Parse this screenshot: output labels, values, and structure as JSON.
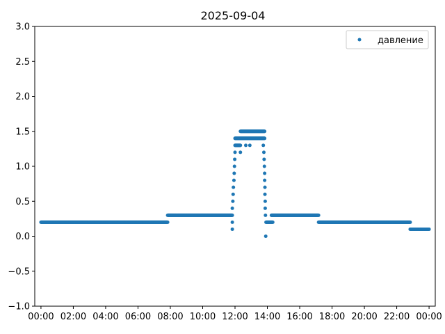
{
  "chart_data": {
    "type": "scatter",
    "title": "2025-09-04",
    "xlabel": "",
    "ylabel": "",
    "xlim": [
      "2025-09-03 23:37",
      "2025-09-05 00:23"
    ],
    "ylim": [
      -1.0,
      3.0
    ],
    "x_ticks": [
      "00:00",
      "02:00",
      "04:00",
      "06:00",
      "08:00",
      "10:00",
      "12:00",
      "14:00",
      "16:00",
      "18:00",
      "20:00",
      "22:00",
      "00:00"
    ],
    "y_ticks": [
      "−1.0",
      "−0.5",
      "0.0",
      "0.5",
      "1.0",
      "1.5",
      "2.0",
      "2.5",
      "3.0"
    ],
    "legend": {
      "position": "upper-right"
    },
    "grid": false,
    "series": [
      {
        "name": "давление",
        "color": "#1f77b4",
        "segments": [
          {
            "start": "00:00",
            "end": "07:50",
            "value": 0.2
          },
          {
            "start": "07:50",
            "end": "11:50",
            "value": 0.3
          },
          {
            "start": "12:00",
            "end": "12:20",
            "value": 1.3
          },
          {
            "start": "12:00",
            "end": "13:50",
            "value": 1.4
          },
          {
            "start": "12:20",
            "end": "13:50",
            "value": 1.5
          },
          {
            "start": "13:55",
            "end": "14:20",
            "value": 0.2
          },
          {
            "start": "14:15",
            "end": "17:10",
            "value": 0.3
          },
          {
            "start": "17:10",
            "end": "22:50",
            "value": 0.2
          },
          {
            "start": "22:50",
            "end": "24:00",
            "value": 0.1
          }
        ],
        "points": [
          {
            "x": "11:50",
            "y": 0.1
          },
          {
            "x": "11:50",
            "y": 0.2
          },
          {
            "x": "11:50",
            "y": 0.4
          },
          {
            "x": "11:52",
            "y": 0.5
          },
          {
            "x": "11:53",
            "y": 0.6
          },
          {
            "x": "11:54",
            "y": 0.7
          },
          {
            "x": "11:56",
            "y": 0.8
          },
          {
            "x": "11:57",
            "y": 0.9
          },
          {
            "x": "11:58",
            "y": 1.0
          },
          {
            "x": "11:59",
            "y": 1.1
          },
          {
            "x": "12:00",
            "y": 1.2
          },
          {
            "x": "12:20",
            "y": 1.2
          },
          {
            "x": "12:40",
            "y": 1.3
          },
          {
            "x": "12:55",
            "y": 1.3
          },
          {
            "x": "13:45",
            "y": 1.3
          },
          {
            "x": "13:47",
            "y": 1.2
          },
          {
            "x": "13:48",
            "y": 1.1
          },
          {
            "x": "13:49",
            "y": 1.0
          },
          {
            "x": "13:50",
            "y": 0.9
          },
          {
            "x": "13:50",
            "y": 0.8
          },
          {
            "x": "13:51",
            "y": 0.7
          },
          {
            "x": "13:51",
            "y": 0.6
          },
          {
            "x": "13:52",
            "y": 0.5
          },
          {
            "x": "13:52",
            "y": 0.4
          },
          {
            "x": "13:53",
            "y": 0.3
          },
          {
            "x": "13:54",
            "y": 0.0
          }
        ]
      }
    ]
  }
}
